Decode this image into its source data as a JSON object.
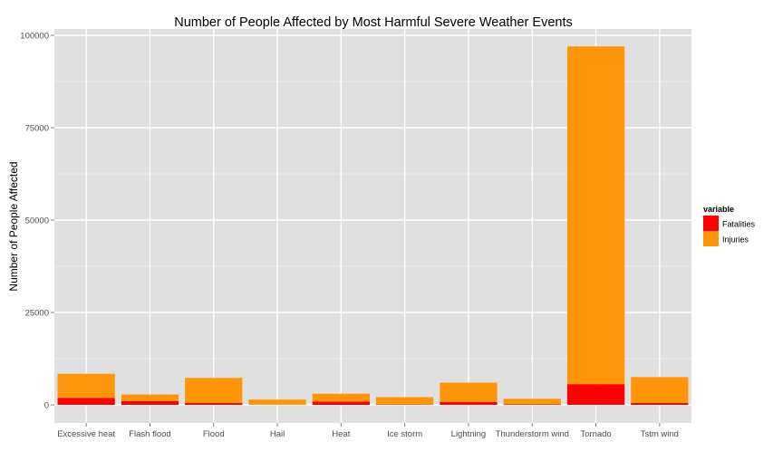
{
  "chart_data": {
    "type": "bar",
    "stacked": true,
    "title": "Number of People Affected by Most Harmful Severe Weather Events",
    "xlabel": "",
    "ylabel": "Number of People Affected",
    "ylim": [
      0,
      100000
    ],
    "yticks": [
      0,
      25000,
      50000,
      75000,
      100000
    ],
    "categories": [
      "Excessive heat",
      "Flash flood",
      "Flood",
      "Hail",
      "Heat",
      "Ice storm",
      "Lightning",
      "Thunderstorm wind",
      "Tornado",
      "Tstm wind"
    ],
    "series": [
      {
        "name": "Fatalities",
        "color": "#ff0000",
        "values": [
          1900,
          1000,
          500,
          20,
          900,
          90,
          800,
          130,
          5600,
          500
        ]
      },
      {
        "name": "Injuries",
        "color": "#ff9509",
        "values": [
          6500,
          1800,
          6800,
          1400,
          2100,
          2000,
          5200,
          1500,
          91400,
          7000
        ]
      }
    ],
    "legend": {
      "title": "variable",
      "position": "right"
    },
    "grid": true,
    "panel_background": "#e0e0e0",
    "grid_color": "#ffffff"
  }
}
